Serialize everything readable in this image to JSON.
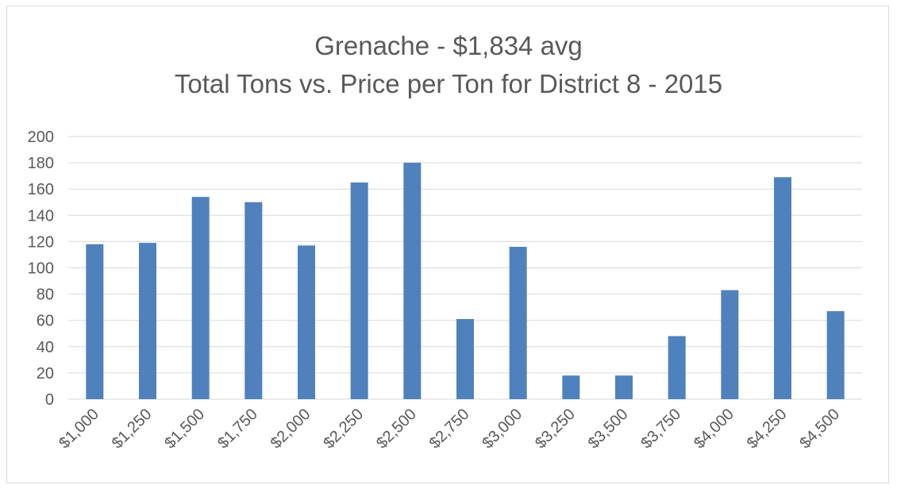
{
  "chart_data": {
    "type": "bar",
    "title": "Grenache - $1,834 avg",
    "subtitle": "Total Tons vs. Price per Ton for District 8 - 2015",
    "xlabel": "",
    "ylabel": "",
    "categories": [
      "$1,000",
      "$1,250",
      "$1,500",
      "$1,750",
      "$2,000",
      "$2,250",
      "$2,500",
      "$2,750",
      "$3,000",
      "$3,250",
      "$3,500",
      "$3,750",
      "$4,000",
      "$4,250",
      "$4,500"
    ],
    "values": [
      118,
      119,
      154,
      150,
      117,
      165,
      180,
      61,
      116,
      18,
      18,
      48,
      83,
      169,
      67
    ],
    "ylim": [
      0,
      200
    ],
    "yticks": [
      0,
      20,
      40,
      60,
      80,
      100,
      120,
      140,
      160,
      180,
      200
    ],
    "grid": true,
    "legend": "none",
    "colors": {
      "bar": "#4f81bd",
      "grid": "#d9d9d9",
      "text": "#595959"
    }
  }
}
